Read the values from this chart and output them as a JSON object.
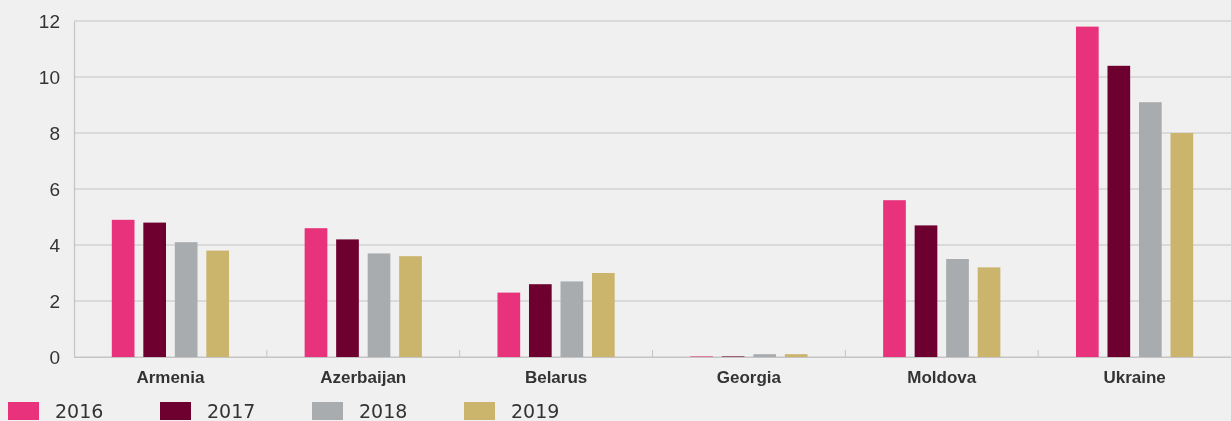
{
  "chart_data": {
    "type": "bar",
    "categories": [
      "Armenia",
      "Azerbaijan",
      "Belarus",
      "Georgia",
      "Moldova",
      "Ukraine"
    ],
    "series": [
      {
        "name": "2016",
        "color": "#e8327c",
        "values": [
          4.9,
          4.6,
          2.3,
          0.02,
          5.6,
          11.8
        ]
      },
      {
        "name": "2017",
        "color": "#6e0030",
        "values": [
          4.8,
          4.2,
          2.6,
          0.02,
          4.7,
          10.4
        ]
      },
      {
        "name": "2018",
        "color": "#a9acae",
        "values": [
          4.1,
          3.7,
          2.7,
          0.1,
          3.5,
          9.1
        ]
      },
      {
        "name": "2019",
        "color": "#cbb46b",
        "values": [
          3.8,
          3.6,
          3.0,
          0.1,
          3.2,
          8.0
        ]
      }
    ],
    "ylim": [
      0,
      12
    ],
    "yticks": [
      0,
      2,
      4,
      6,
      8,
      10,
      12
    ],
    "grid": "y",
    "legend": "bottom left"
  }
}
